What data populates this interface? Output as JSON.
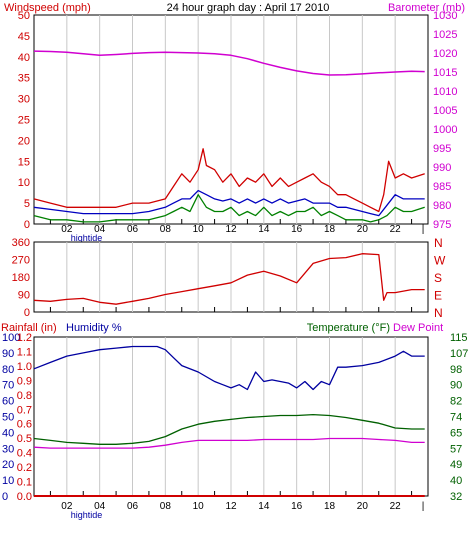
{
  "chart_data": [
    {
      "type": "line",
      "title": "24 hour graph day : April 17 2010",
      "ylabel_left": "Windspeed (mph)",
      "ylabel_right": "Barometer (mb)",
      "ylim_left": [
        0,
        50
      ],
      "ylim_right": [
        975,
        1030
      ],
      "yticks_left": [
        "0",
        "5",
        "10",
        "15",
        "20",
        "25",
        "30",
        "35",
        "40",
        "45",
        "50"
      ],
      "yticks_right": [
        "975",
        "980",
        "985",
        "990",
        "995",
        "1000",
        "1005",
        "1010",
        "1015",
        "1020",
        "1025",
        "1030"
      ],
      "xticks": [
        "02",
        "04",
        "06",
        "08",
        "10",
        "12",
        "14",
        "16",
        "18",
        "20",
        "22",
        "|"
      ],
      "x_annotation": "hightide",
      "xlim": [
        0,
        24
      ],
      "grid": true,
      "colors": {
        "gust": "#d00000",
        "avg": "#0000c0",
        "low": "#008000",
        "barometer": "#d000d0"
      },
      "series": [
        {
          "key": "gust",
          "x": [
            0,
            1,
            2,
            3,
            4,
            5,
            6,
            7,
            8,
            8.5,
            9,
            9.5,
            10,
            10.3,
            10.5,
            11,
            11.5,
            12,
            12.5,
            13,
            13.5,
            14,
            14.5,
            15,
            15.5,
            16,
            16.5,
            17,
            17.5,
            18,
            18.5,
            19,
            19.5,
            20,
            20.5,
            21,
            21.3,
            21.6,
            22,
            22.5,
            23,
            23.8
          ],
          "values": [
            6,
            5,
            4,
            4,
            4,
            4,
            5,
            5,
            6,
            9,
            12,
            10,
            13,
            18,
            14,
            13,
            10,
            12,
            9,
            11,
            10,
            12,
            9,
            11,
            9,
            10,
            11,
            12,
            10,
            9,
            7,
            7,
            6,
            5,
            4,
            3,
            7,
            15,
            11,
            12,
            11,
            12
          ]
        },
        {
          "key": "avg",
          "x": [
            0,
            1,
            2,
            3,
            4,
            5,
            6,
            7,
            8,
            8.5,
            9,
            9.5,
            10,
            10.5,
            11,
            11.5,
            12,
            12.5,
            13,
            13.5,
            14,
            14.5,
            15,
            15.5,
            16,
            16.5,
            17,
            17.5,
            18,
            18.5,
            19,
            19.5,
            20,
            20.5,
            21,
            21.5,
            22,
            22.5,
            23,
            23.8
          ],
          "values": [
            4,
            3.5,
            3,
            2.5,
            2.5,
            2.5,
            2.5,
            3,
            4,
            5,
            6,
            6,
            8,
            7,
            6,
            5.5,
            6,
            5,
            6,
            5,
            6,
            5,
            6,
            5,
            5.5,
            6,
            5,
            5,
            5,
            4,
            4,
            3.5,
            3,
            2.5,
            2,
            4.5,
            7,
            6,
            6,
            6
          ]
        },
        {
          "key": "low",
          "x": [
            0,
            1,
            2,
            3,
            4,
            5,
            6,
            7,
            8,
            8.5,
            9,
            9.5,
            10,
            10.5,
            11,
            11.5,
            12,
            12.5,
            13,
            13.5,
            14,
            14.5,
            15,
            15.5,
            16,
            16.5,
            17,
            17.5,
            18,
            18.5,
            19,
            19.5,
            20,
            20.5,
            21,
            21.5,
            22,
            22.5,
            23,
            23.8
          ],
          "values": [
            2,
            1,
            1,
            0.5,
            0.5,
            1,
            1,
            1,
            2,
            3,
            4,
            3,
            7,
            4,
            3,
            3,
            4,
            2,
            3,
            2,
            4,
            2,
            3,
            2,
            3,
            3,
            4,
            2,
            3,
            2,
            1,
            1,
            1,
            0.5,
            1,
            2,
            4,
            3,
            3,
            4
          ]
        },
        {
          "key": "barometer",
          "axis": "right",
          "x": [
            0,
            1,
            2,
            3,
            4,
            5,
            6,
            7,
            8,
            9,
            10,
            11,
            12,
            13,
            14,
            15,
            16,
            17,
            18,
            19,
            20,
            21,
            22,
            23,
            23.8
          ],
          "values": [
            1020.5,
            1020.4,
            1020.2,
            1019.8,
            1019.4,
            1019.6,
            1019.9,
            1020.1,
            1020.2,
            1020.1,
            1020.0,
            1019.8,
            1019.4,
            1018.5,
            1017.3,
            1016.2,
            1015.3,
            1014.6,
            1014.2,
            1014.3,
            1014.5,
            1014.8,
            1015.0,
            1015.2,
            1015.1
          ]
        }
      ]
    },
    {
      "type": "line",
      "ylim": [
        0,
        360
      ],
      "yticks": [
        "0",
        "90",
        "180",
        "270",
        "360"
      ],
      "direction_labels": [
        "N",
        "W",
        "S",
        "E",
        "N"
      ],
      "xticks": [
        "02",
        "04",
        "06",
        "08",
        "10",
        "12",
        "14",
        "16",
        "18",
        "20",
        "22",
        "|"
      ],
      "xlim": [
        0,
        24
      ],
      "grid": true,
      "colors": {
        "direction": "#d00000"
      },
      "series": [
        {
          "key": "direction",
          "x": [
            0,
            1,
            2,
            3,
            4,
            5,
            6,
            7,
            8,
            9,
            10,
            11,
            12,
            13,
            14,
            15,
            16,
            17,
            18,
            19,
            20,
            21,
            21.3,
            21.5,
            22,
            23,
            23.8
          ],
          "values": [
            60,
            55,
            65,
            70,
            50,
            40,
            55,
            70,
            90,
            105,
            120,
            135,
            150,
            190,
            210,
            185,
            150,
            250,
            275,
            280,
            300,
            295,
            60,
            100,
            100,
            115,
            115
          ]
        }
      ]
    },
    {
      "type": "line",
      "ylabel_left": "Rainfall (in)",
      "ylabel_left2": "Humidity %",
      "ylabel_right": "Temperature (°F)",
      "ylabel_right2": "Dew Point",
      "ylim_humidity": [
        0,
        100
      ],
      "ylim_rain": [
        0,
        1.2
      ],
      "ylim_temp": [
        32,
        115
      ],
      "yticks_humidity": [
        "0",
        "10",
        "20",
        "30",
        "40",
        "50",
        "60",
        "70",
        "80",
        "90",
        "100"
      ],
      "yticks_rain": [
        "0.0",
        "0.1",
        "0.2",
        "0.4",
        "0.5",
        "0.6",
        "0.7",
        "0.8",
        "0.9",
        "1.0",
        "1.1",
        "1.2"
      ],
      "yticks_temp": [
        "32",
        "40",
        "49",
        "57",
        "65",
        "74",
        "82",
        "90",
        "98",
        "107",
        "115"
      ],
      "xticks": [
        "02",
        "04",
        "06",
        "08",
        "10",
        "12",
        "14",
        "16",
        "18",
        "20",
        "22",
        "|"
      ],
      "x_annotation": "hightide",
      "xlim": [
        0,
        24
      ],
      "grid": true,
      "colors": {
        "humidity": "#0000a0",
        "temperature": "#006000",
        "dew_point": "#d000d0",
        "rainfall": "#d00000"
      },
      "series": [
        {
          "key": "humidity",
          "axis": "humidity",
          "x": [
            0,
            1,
            2,
            3,
            4,
            5,
            6,
            7,
            7.5,
            8,
            8.5,
            9,
            10,
            11,
            11.5,
            12,
            12.5,
            13,
            13.5,
            14,
            14.5,
            15,
            15.5,
            16,
            16.5,
            17,
            17.5,
            18,
            18.5,
            19,
            20,
            21,
            22,
            22.5,
            23,
            23.8
          ],
          "values": [
            80,
            84,
            88,
            90,
            92,
            93,
            94,
            94,
            94,
            92,
            87,
            82,
            78,
            72,
            70,
            68,
            70,
            67,
            78,
            72,
            73,
            72,
            71,
            68,
            72,
            67,
            72,
            70,
            81,
            81,
            82,
            84,
            88,
            91,
            88,
            88
          ]
        },
        {
          "key": "temperature",
          "axis": "temp",
          "x": [
            0,
            1,
            2,
            3,
            4,
            5,
            6,
            7,
            8,
            9,
            10,
            11,
            12,
            13,
            14,
            15,
            16,
            17,
            18,
            19,
            20,
            21,
            22,
            23,
            23.8
          ],
          "values": [
            62.0,
            61.0,
            60.0,
            59.5,
            59.0,
            59.0,
            59.5,
            60.5,
            63.0,
            67.0,
            69.5,
            71.0,
            72.0,
            73.0,
            73.5,
            74.0,
            74.0,
            74.5,
            74.0,
            73.0,
            71.5,
            70.0,
            67.5,
            67.0,
            67.0
          ]
        },
        {
          "key": "dew_point",
          "axis": "temp",
          "x": [
            0,
            1,
            2,
            3,
            4,
            5,
            6,
            7,
            8,
            9,
            10,
            11,
            12,
            13,
            14,
            15,
            16,
            17,
            18,
            19,
            20,
            21,
            22,
            23,
            23.8
          ],
          "values": [
            57.5,
            57.0,
            57.0,
            57.0,
            57.0,
            57.0,
            57.0,
            57.5,
            58.5,
            60.0,
            61.0,
            61.0,
            61.0,
            61.0,
            61.5,
            61.5,
            61.5,
            61.5,
            62.0,
            62.0,
            62.0,
            61.5,
            61.0,
            60.0,
            60.0
          ]
        },
        {
          "key": "rainfall",
          "axis": "rain",
          "x": [
            0,
            23.8
          ],
          "values": [
            0.0,
            0.0
          ]
        }
      ]
    }
  ]
}
